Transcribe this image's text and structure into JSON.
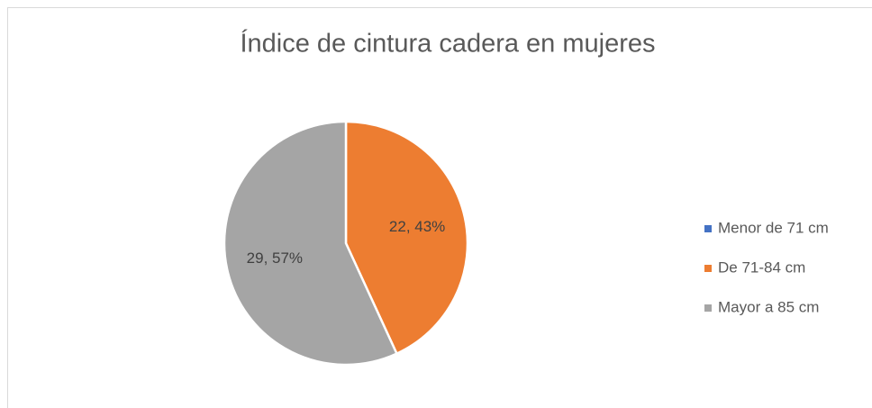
{
  "chart_data": {
    "type": "pie",
    "title": "Índice de cintura cadera en mujeres",
    "categories": [
      "Menor de 71 cm",
      "De  71-84 cm",
      "Mayor a 85 cm"
    ],
    "values": [
      0,
      22,
      29
    ],
    "value_labels": [
      null,
      "22, 43%",
      "29, 57%"
    ],
    "colors": [
      "#4472c4",
      "#ed7d31",
      "#a5a5a5"
    ],
    "legend": "right"
  }
}
